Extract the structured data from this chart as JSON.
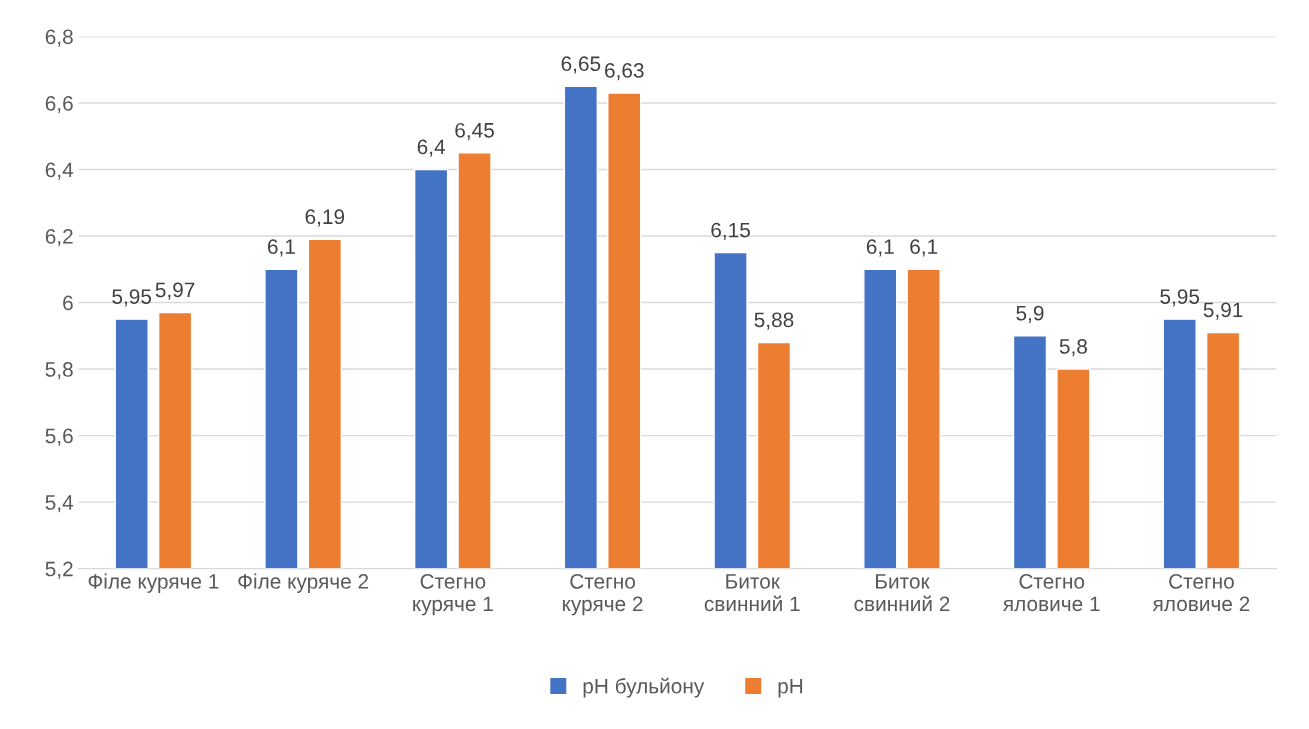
{
  "chart_data": {
    "type": "bar",
    "categories": [
      "Філе куряче 1",
      "Філе куряче 2",
      "Стегно куряче 1",
      "Стегно куряче 2",
      "Биток свинний 1",
      "Биток свинний 2",
      "Стегно яловиче 1",
      "Стегно яловиче 2"
    ],
    "series": [
      {
        "name": "pH бульйону",
        "color": "#4472c4",
        "values": [
          5.95,
          6.1,
          6.4,
          6.65,
          6.15,
          6.1,
          5.9,
          5.95
        ],
        "value_labels": [
          "5,95",
          "6,1",
          "6,4",
          "6,65",
          "6,15",
          "6,1",
          "5,9",
          "5,95"
        ]
      },
      {
        "name": "pH",
        "color": "#ed7d31",
        "values": [
          5.97,
          6.19,
          6.45,
          6.63,
          5.88,
          6.1,
          5.8,
          5.91
        ],
        "value_labels": [
          "5,97",
          "6,19",
          "6,45",
          "6,63",
          "5,88",
          "6,1",
          "5,8",
          "5,91"
        ]
      }
    ],
    "ylim": [
      5.2,
      6.8
    ],
    "yticks": [
      {
        "value": 5.2,
        "label": "5,2"
      },
      {
        "value": 5.4,
        "label": "5,4"
      },
      {
        "value": 5.6,
        "label": "5,6"
      },
      {
        "value": 5.8,
        "label": "5,8"
      },
      {
        "value": 6,
        "label": "6"
      },
      {
        "value": 6.2,
        "label": "6,2"
      },
      {
        "value": 6.4,
        "label": "6,4"
      },
      {
        "value": 6.6,
        "label": "6,6"
      },
      {
        "value": 6.8,
        "label": "6,8"
      }
    ],
    "grid": "y",
    "legend": "bottom"
  }
}
